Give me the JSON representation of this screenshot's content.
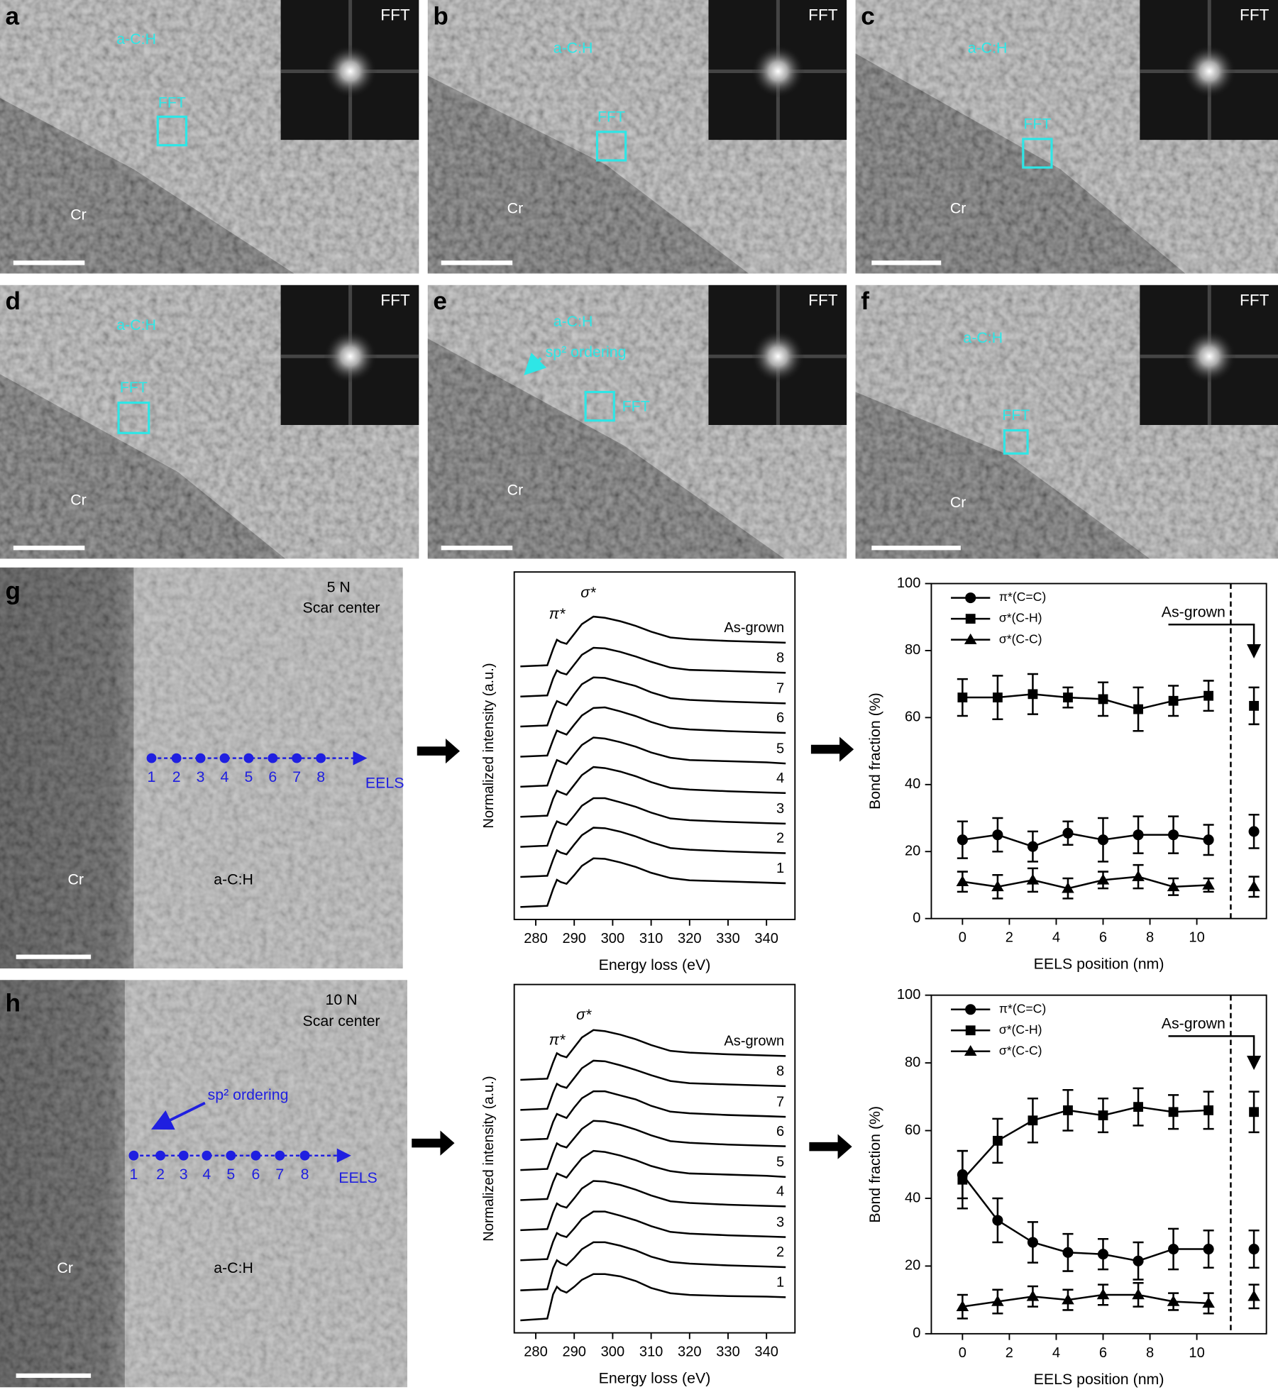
{
  "panels": [
    {
      "label": "a",
      "inset": "FFT",
      "matrix": "a-C:H",
      "box": "FFT",
      "substrate": "Cr"
    },
    {
      "label": "b",
      "inset": "FFT",
      "matrix": "a-C:H",
      "box": "FFT",
      "substrate": "Cr"
    },
    {
      "label": "c",
      "inset": "FFT",
      "matrix": "a-C:H",
      "box": "FFT",
      "substrate": "Cr"
    },
    {
      "label": "d",
      "inset": "FFT",
      "matrix": "a-C:H",
      "box": "FFT",
      "substrate": "Cr"
    },
    {
      "label": "e",
      "inset": "FFT",
      "matrix": "a-C:H",
      "box": "FFT",
      "substrate": "Cr",
      "annotation": "sp² ordering"
    },
    {
      "label": "f",
      "inset": "FFT",
      "matrix": "a-C:H",
      "box": "FFT",
      "substrate": "Cr"
    }
  ],
  "eels_images": [
    {
      "label": "g",
      "load": "5 N",
      "location": "Scar center",
      "points": [
        "1",
        "2",
        "3",
        "4",
        "5",
        "6",
        "7",
        "8"
      ],
      "arrow": "EELS",
      "substrate": "Cr",
      "matrix": "a-C:H"
    },
    {
      "label": "h",
      "load": "10 N",
      "location": "Scar center",
      "points": [
        "1",
        "2",
        "3",
        "4",
        "5",
        "6",
        "7",
        "8"
      ],
      "arrow": "EELS",
      "substrate": "Cr",
      "matrix": "a-C:H",
      "annotation": "sp² ordering"
    }
  ],
  "chart_data": [
    {
      "type": "spectra",
      "x_label": "Energy loss (eV)",
      "y_label": "Normalized intensity (a.u.)",
      "xlim": [
        274.4,
        347.4
      ],
      "xticks": [
        280,
        290,
        300,
        310,
        320,
        330,
        340
      ],
      "annotations": [
        "π*",
        "σ*"
      ],
      "color": "#000000",
      "x": [
        276,
        283,
        284.5,
        285.5,
        286.5,
        288,
        290,
        292,
        295,
        298,
        302,
        306,
        310,
        315,
        320,
        330,
        340,
        345
      ],
      "series": [
        {
          "name": "As-grown",
          "values": [
            0,
            0.02,
            0.3,
            0.46,
            0.42,
            0.39,
            0.56,
            0.73,
            0.86,
            0.84,
            0.78,
            0.7,
            0.6,
            0.5,
            0.47,
            0.44,
            0.42,
            0.41
          ]
        },
        {
          "name": "8",
          "values": [
            0,
            0.02,
            0.31,
            0.45,
            0.41,
            0.38,
            0.55,
            0.72,
            0.84,
            0.83,
            0.77,
            0.69,
            0.6,
            0.5,
            0.46,
            0.44,
            0.42,
            0.41
          ]
        },
        {
          "name": "7",
          "values": [
            0,
            0.02,
            0.3,
            0.44,
            0.41,
            0.37,
            0.56,
            0.73,
            0.85,
            0.84,
            0.77,
            0.7,
            0.59,
            0.49,
            0.46,
            0.43,
            0.41,
            0.4
          ]
        },
        {
          "name": "6",
          "values": [
            0,
            0.02,
            0.29,
            0.45,
            0.42,
            0.38,
            0.55,
            0.71,
            0.84,
            0.85,
            0.78,
            0.7,
            0.6,
            0.5,
            0.47,
            0.44,
            0.42,
            0.41
          ]
        },
        {
          "name": "5",
          "values": [
            0,
            0.02,
            0.3,
            0.46,
            0.43,
            0.39,
            0.56,
            0.72,
            0.85,
            0.83,
            0.77,
            0.69,
            0.59,
            0.5,
            0.46,
            0.44,
            0.42,
            0.4
          ]
        },
        {
          "name": "4",
          "values": [
            0,
            0.02,
            0.31,
            0.45,
            0.42,
            0.38,
            0.55,
            0.72,
            0.86,
            0.84,
            0.78,
            0.7,
            0.6,
            0.5,
            0.47,
            0.44,
            0.42,
            0.41
          ]
        },
        {
          "name": "3",
          "values": [
            0,
            0.02,
            0.3,
            0.44,
            0.41,
            0.38,
            0.54,
            0.71,
            0.84,
            0.84,
            0.77,
            0.69,
            0.59,
            0.49,
            0.46,
            0.43,
            0.41,
            0.4
          ]
        },
        {
          "name": "2",
          "values": [
            0,
            0.02,
            0.3,
            0.46,
            0.42,
            0.39,
            0.56,
            0.72,
            0.85,
            0.84,
            0.78,
            0.7,
            0.6,
            0.5,
            0.47,
            0.44,
            0.42,
            0.41
          ]
        },
        {
          "name": "1",
          "values": [
            0,
            0.02,
            0.31,
            0.47,
            0.43,
            0.4,
            0.55,
            0.71,
            0.84,
            0.83,
            0.77,
            0.69,
            0.59,
            0.5,
            0.46,
            0.44,
            0.42,
            0.41
          ]
        }
      ]
    },
    {
      "type": "errorline",
      "x_label": "EELS position (nm)",
      "y_label": "Bond fraction (%)",
      "xlim": [
        -1.33,
        12.97
      ],
      "xticks": [
        0,
        2,
        4,
        6,
        8,
        10
      ],
      "ylim": [
        0,
        100
      ],
      "yticks": [
        0,
        20,
        40,
        60,
        80,
        100
      ],
      "reference_label": "As-grown",
      "legend": "upper left",
      "x": [
        0,
        1.5,
        3,
        4.5,
        6,
        7.5,
        9,
        10.5
      ],
      "series": [
        {
          "name": "π*(C=C)",
          "marker": "circle",
          "color": "#000000",
          "values": [
            23.5,
            25,
            21.5,
            25.5,
            23.5,
            25,
            25,
            23.5
          ],
          "errors": [
            5.5,
            5,
            4.5,
            3.5,
            6.5,
            5.5,
            5.5,
            4.5
          ],
          "reference_value": 26,
          "reference_error": 5
        },
        {
          "name": "σ*(C-H)",
          "marker": "square",
          "color": "#000000",
          "values": [
            66,
            66,
            67,
            66,
            65.5,
            62.5,
            65,
            66.5
          ],
          "errors": [
            5.5,
            6.5,
            6,
            3,
            5,
            6.5,
            4.5,
            4.5
          ],
          "reference_value": 63.5,
          "reference_error": 5.5
        },
        {
          "name": "σ*(C-C)",
          "marker": "triangle",
          "color": "#000000",
          "values": [
            11,
            9.5,
            11.5,
            9,
            11.5,
            12.5,
            9.5,
            10
          ],
          "errors": [
            3,
            3.5,
            3.5,
            3,
            2.5,
            3.5,
            2.5,
            2
          ],
          "reference_value": 9.5,
          "reference_error": 3
        }
      ]
    },
    {
      "type": "spectra",
      "x_label": "Energy loss (eV)",
      "y_label": "Normalized intensity (a.u.)",
      "xlim": [
        274.4,
        347.4
      ],
      "xticks": [
        280,
        290,
        300,
        310,
        320,
        330,
        340
      ],
      "annotations": [
        "π*",
        "σ*"
      ],
      "color": "#000000",
      "x": [
        276,
        283,
        284.5,
        285.5,
        286.5,
        288,
        290,
        292,
        295,
        298,
        302,
        306,
        310,
        315,
        320,
        330,
        340,
        345
      ],
      "series": [
        {
          "name": "As-grown",
          "values": [
            0,
            0.02,
            0.3,
            0.46,
            0.42,
            0.39,
            0.56,
            0.73,
            0.86,
            0.84,
            0.78,
            0.7,
            0.6,
            0.5,
            0.47,
            0.44,
            0.42,
            0.41
          ]
        },
        {
          "name": "8",
          "values": [
            0,
            0.02,
            0.3,
            0.45,
            0.41,
            0.38,
            0.55,
            0.72,
            0.85,
            0.84,
            0.77,
            0.69,
            0.6,
            0.5,
            0.46,
            0.44,
            0.42,
            0.41
          ]
        },
        {
          "name": "7",
          "values": [
            0,
            0.02,
            0.31,
            0.45,
            0.42,
            0.38,
            0.56,
            0.72,
            0.84,
            0.84,
            0.77,
            0.7,
            0.59,
            0.49,
            0.46,
            0.43,
            0.41,
            0.4
          ]
        },
        {
          "name": "6",
          "values": [
            0,
            0.02,
            0.3,
            0.46,
            0.42,
            0.39,
            0.55,
            0.71,
            0.85,
            0.84,
            0.78,
            0.7,
            0.6,
            0.5,
            0.47,
            0.44,
            0.42,
            0.41
          ]
        },
        {
          "name": "5",
          "values": [
            0,
            0.02,
            0.31,
            0.46,
            0.43,
            0.39,
            0.56,
            0.72,
            0.85,
            0.83,
            0.77,
            0.69,
            0.59,
            0.5,
            0.46,
            0.44,
            0.42,
            0.4
          ]
        },
        {
          "name": "4",
          "values": [
            0,
            0.02,
            0.31,
            0.46,
            0.42,
            0.39,
            0.55,
            0.72,
            0.85,
            0.84,
            0.78,
            0.7,
            0.6,
            0.5,
            0.47,
            0.44,
            0.42,
            0.41
          ]
        },
        {
          "name": "3",
          "values": [
            0,
            0.02,
            0.32,
            0.47,
            0.43,
            0.4,
            0.55,
            0.71,
            0.84,
            0.84,
            0.77,
            0.69,
            0.59,
            0.49,
            0.46,
            0.43,
            0.41,
            0.4
          ]
        },
        {
          "name": "2",
          "values": [
            0,
            0.02,
            0.38,
            0.52,
            0.47,
            0.43,
            0.56,
            0.71,
            0.83,
            0.83,
            0.77,
            0.69,
            0.58,
            0.49,
            0.46,
            0.43,
            0.41,
            0.4
          ]
        },
        {
          "name": "1",
          "values": [
            0,
            0.03,
            0.45,
            0.58,
            0.52,
            0.48,
            0.58,
            0.7,
            0.8,
            0.8,
            0.76,
            0.68,
            0.56,
            0.47,
            0.44,
            0.42,
            0.41,
            0.4
          ]
        }
      ]
    },
    {
      "type": "errorline",
      "x_label": "EELS position (nm)",
      "y_label": "Bond fraction (%)",
      "xlim": [
        -1.33,
        12.97
      ],
      "xticks": [
        0,
        2,
        4,
        6,
        8,
        10
      ],
      "ylim": [
        0,
        100
      ],
      "yticks": [
        0,
        20,
        40,
        60,
        80,
        100
      ],
      "reference_label": "As-grown",
      "legend": "upper left",
      "x": [
        0,
        1.5,
        3,
        4.5,
        6,
        7.5,
        9,
        10.5
      ],
      "series": [
        {
          "name": "π*(C=C)",
          "marker": "circle",
          "color": "#000000",
          "values": [
            47,
            33.5,
            27,
            24,
            23.5,
            21.5,
            25,
            25
          ],
          "errors": [
            7,
            6.5,
            6,
            5.5,
            4.5,
            5.5,
            6,
            5.5
          ],
          "reference_value": 25,
          "reference_error": 5.5
        },
        {
          "name": "σ*(C-H)",
          "marker": "square",
          "color": "#000000",
          "values": [
            45.5,
            57,
            63,
            66,
            64.5,
            67,
            65.5,
            66
          ],
          "errors": [
            8.5,
            6.5,
            6.5,
            6,
            5,
            5.5,
            5,
            5.5
          ],
          "reference_value": 65.5,
          "reference_error": 6
        },
        {
          "name": "σ*(C-C)",
          "marker": "triangle",
          "color": "#000000",
          "values": [
            8,
            9.5,
            11,
            10,
            11.5,
            11.5,
            9.5,
            9
          ],
          "errors": [
            3.5,
            3.5,
            3,
            3,
            3,
            3.5,
            2.5,
            3
          ],
          "reference_value": 11,
          "reference_error": 3.5
        }
      ]
    }
  ]
}
